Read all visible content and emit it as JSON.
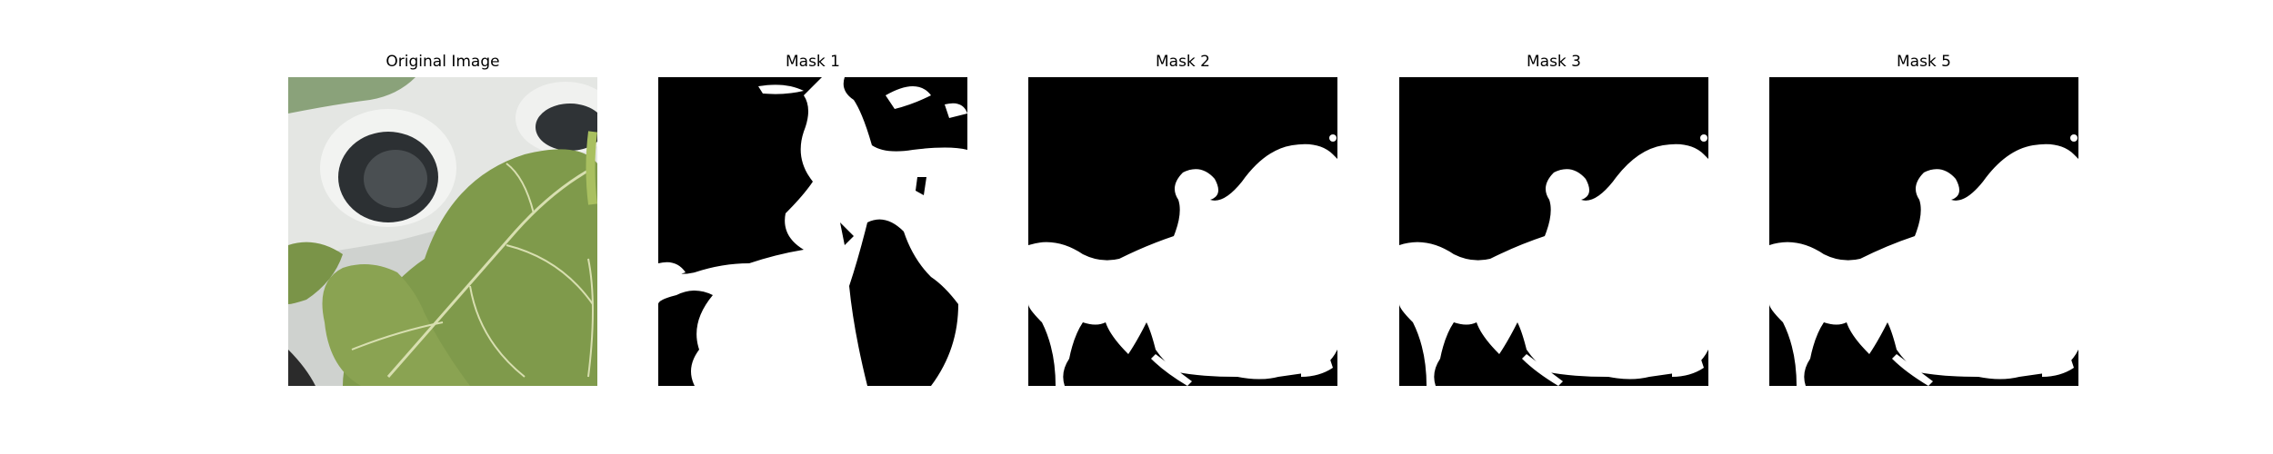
{
  "figure": {
    "panels": [
      {
        "title": "Original Image",
        "kind": "photo"
      },
      {
        "title": "Mask 1",
        "kind": "mask"
      },
      {
        "title": "Mask 2",
        "kind": "mask"
      },
      {
        "title": "Mask 3",
        "kind": "mask"
      },
      {
        "title": "Mask 5",
        "kind": "mask"
      }
    ],
    "colors": {
      "mask_background": "#000000",
      "mask_foreground": "#ffffff",
      "leaf": "#7f9a4b",
      "leaf_dark": "#5a7a30",
      "pot": "#dfe1de"
    }
  }
}
